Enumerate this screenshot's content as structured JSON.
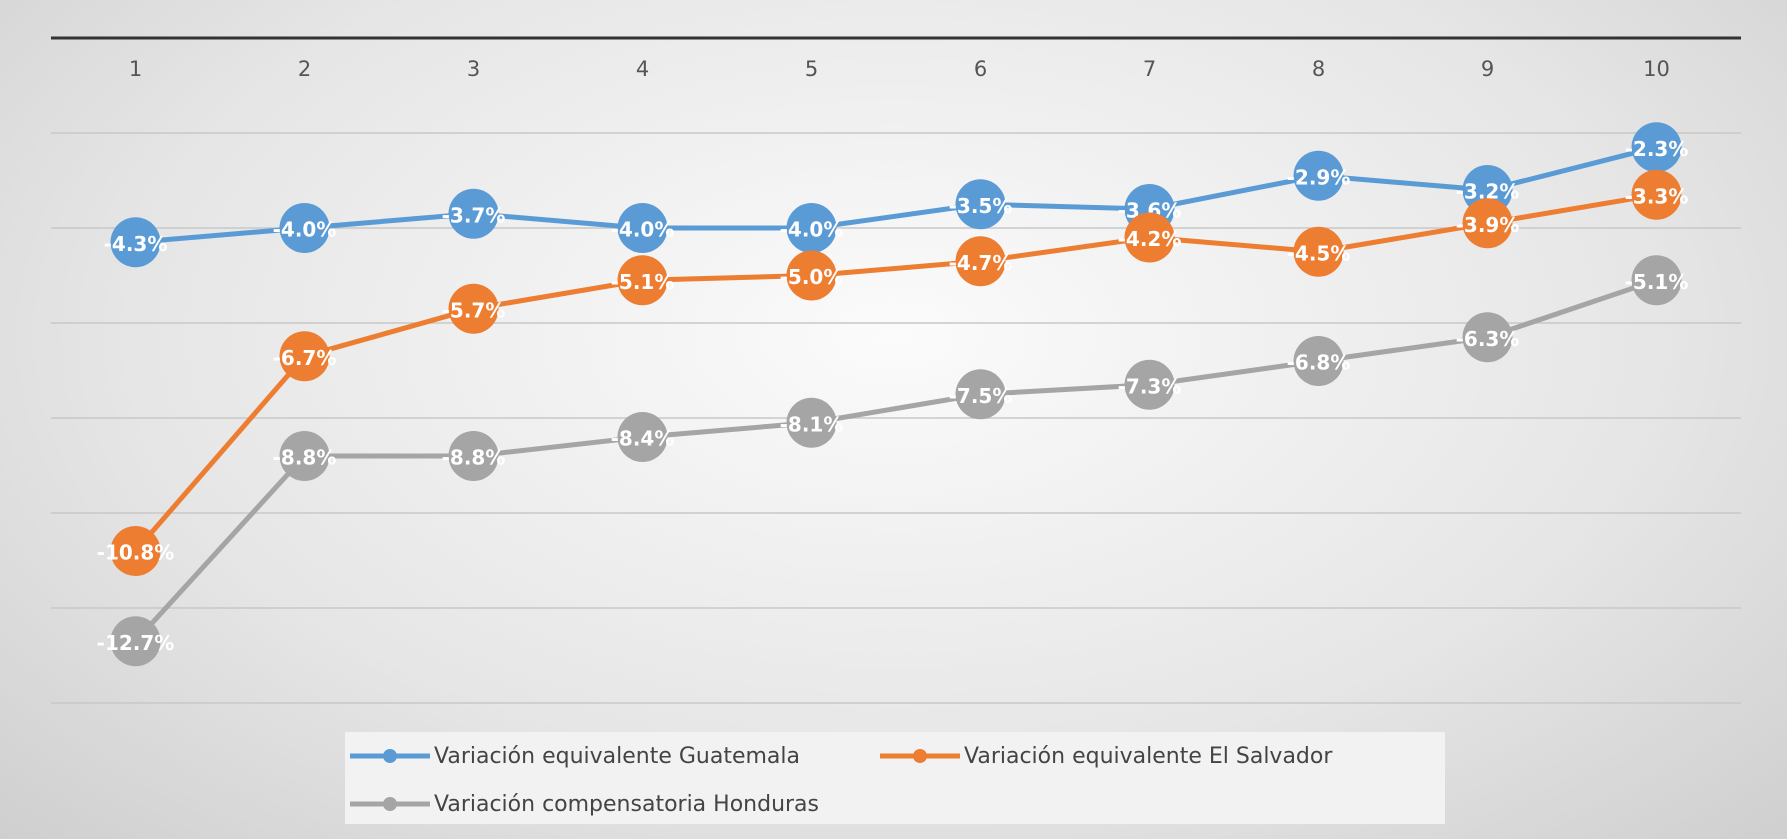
{
  "chart_data": {
    "type": "line",
    "categories": [
      "1",
      "2",
      "3",
      "4",
      "5",
      "6",
      "7",
      "8",
      "9",
      "10"
    ],
    "series": [
      {
        "name": "Variación equivalente Guatemala",
        "color": "#5b9bd5",
        "values": [
          -4.3,
          -4.0,
          -3.7,
          -4.0,
          -4.0,
          -3.5,
          -3.6,
          -2.9,
          -3.2,
          -2.3
        ],
        "value_labels": [
          "-4.3%",
          "-4.0%",
          "-3.7%",
          "-4.0%",
          "-4.0%",
          "-3.5%",
          "-3.6%",
          "-2.9%",
          "-3.2%",
          "-2.3%"
        ]
      },
      {
        "name": "Variación equivalente El Salvador",
        "color": "#ed7d31",
        "values": [
          -10.8,
          -6.7,
          -5.7,
          -5.1,
          -5.0,
          -4.7,
          -4.2,
          -4.5,
          -3.9,
          -3.3
        ],
        "value_labels": [
          "-10.8%",
          "-6.7%",
          "-5.7%",
          "-5.1%",
          "-5.0%",
          "-4.7%",
          "-4.2%",
          "-4.5%",
          "-3.9%",
          "-3.3%"
        ]
      },
      {
        "name": "Variación compensatoria Honduras",
        "color": "#a5a5a5",
        "values": [
          -12.7,
          -8.8,
          -8.8,
          -8.4,
          -8.1,
          -7.5,
          -7.3,
          -6.8,
          -6.3,
          -5.1
        ],
        "value_labels": [
          "-12.7%",
          "-8.8%",
          "-8.8%",
          "-8.4%",
          "-8.1%",
          "-7.5%",
          "-7.3%",
          "-6.8%",
          "-6.3%",
          "-5.1%"
        ]
      }
    ],
    "ylim": [
      -14,
      0
    ],
    "yticks": [
      -14,
      -12,
      -10,
      -8,
      -6,
      -4,
      -2,
      0
    ],
    "grid": true
  }
}
